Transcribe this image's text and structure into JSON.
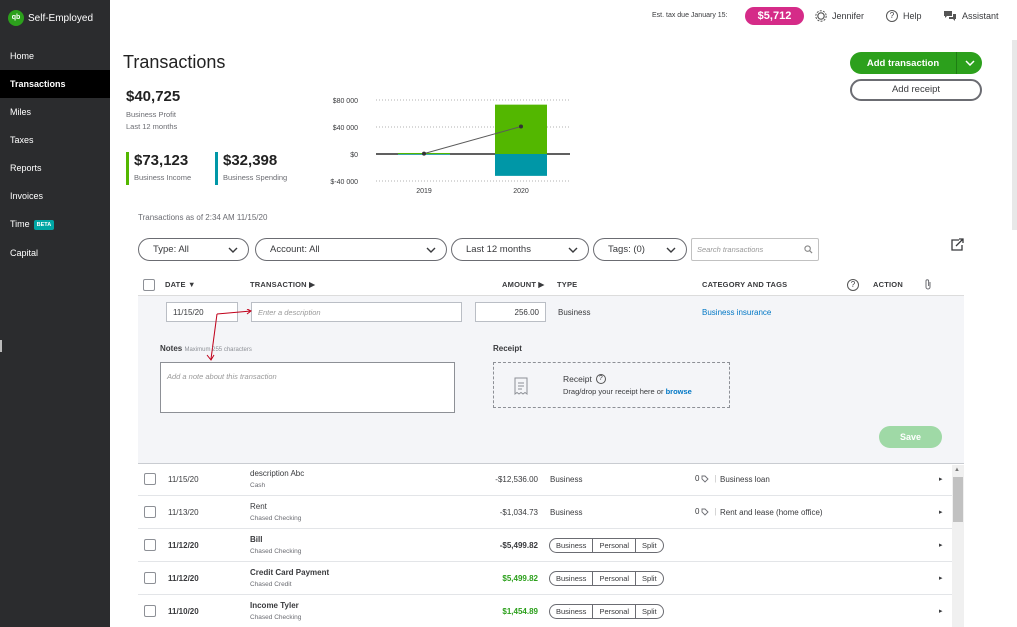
{
  "app": {
    "name": "Self-Employed",
    "logo": "qb"
  },
  "nav": [
    {
      "label": "Home"
    },
    {
      "label": "Transactions",
      "active": true
    },
    {
      "label": "Miles"
    },
    {
      "label": "Taxes"
    },
    {
      "label": "Reports"
    },
    {
      "label": "Invoices"
    },
    {
      "label": "Time",
      "badge": "BETA"
    },
    {
      "label": "Capital"
    }
  ],
  "topbar": {
    "est_label": "Est. tax due January 15:",
    "est_amount": "$5,712",
    "user": "Jennifer",
    "help": "Help",
    "assistant": "Assistant"
  },
  "page": {
    "title": "Transactions"
  },
  "actions": {
    "add_transaction": "Add transaction",
    "add_receipt": "Add receipt"
  },
  "summary": {
    "profit_value": "$40,725",
    "profit_label": "Business Profit",
    "period": "Last 12 months",
    "income_value": "$73,123",
    "income_label": "Business Income",
    "spending_value": "$32,398",
    "spending_label": "Business Spending",
    "colors": {
      "income": "#53b700",
      "spending": "#0097a7",
      "profit_line": "#5a5a5a"
    }
  },
  "chart_data": {
    "type": "bar",
    "categories": [
      "2019",
      "2020"
    ],
    "series": [
      {
        "values": [
          1500,
          73123
        ]
      },
      {
        "values": [
          -1000,
          -32398
        ]
      },
      {
        "values": [
          500,
          40725
        ]
      }
    ],
    "y_ticks": [
      "$80 000",
      "$40 000",
      "$0",
      "$-40 000"
    ],
    "ylim": [
      -40000,
      80000
    ],
    "grid": true
  },
  "as_of": "Transactions as of 2:34 AM 11/15/20",
  "filters": {
    "type": "Type: All",
    "account": "Account: All",
    "period": "Last 12 months",
    "tags": "Tags: (0)",
    "search_placeholder": "Search transactions"
  },
  "table_headers": {
    "date": "DATE",
    "transaction": "TRANSACTION",
    "amount": "AMOUNT",
    "type": "TYPE",
    "category": "CATEGORY AND TAGS",
    "action": "ACTION"
  },
  "edit_row": {
    "date": "11/15/20",
    "description_placeholder": "Enter a description",
    "amount": "256.00",
    "type": "Business",
    "category": "Business insurance",
    "notes_label": "Notes",
    "notes_hint": "Maximum 255 characters",
    "notes_placeholder": "Add a note about this transaction",
    "receipt_section": "Receipt",
    "receipt_title": "Receipt",
    "receipt_help": "Drag/drop your receipt here or",
    "receipt_browse": "browse",
    "save": "Save"
  },
  "rows": [
    {
      "date": "11/15/20",
      "title": "description Abc",
      "account": "Cash",
      "amount": "-$12,536.00",
      "type": "Business",
      "tags": "0",
      "category": "Business loan"
    },
    {
      "date": "11/13/20",
      "title": "Rent",
      "account": "Chased Checking",
      "amount": "-$1,034.73",
      "type": "Business",
      "tags": "0",
      "category": "Rent and lease (home office)"
    },
    {
      "date": "11/12/20",
      "title": "Bill",
      "account": "Chased Checking",
      "amount": "-$5,499.82",
      "seg": [
        "Business",
        "Personal",
        "Split"
      ]
    },
    {
      "date": "11/12/20",
      "title": "Credit Card Payment",
      "account": "Chased Credit",
      "amount": "$5,499.82",
      "seg": [
        "Business",
        "Personal",
        "Split"
      ]
    },
    {
      "date": "11/10/20",
      "title": "Income Tyler",
      "account": "Chased Checking",
      "amount": "$1,454.89",
      "seg": [
        "Business",
        "Personal",
        "Split"
      ]
    }
  ]
}
